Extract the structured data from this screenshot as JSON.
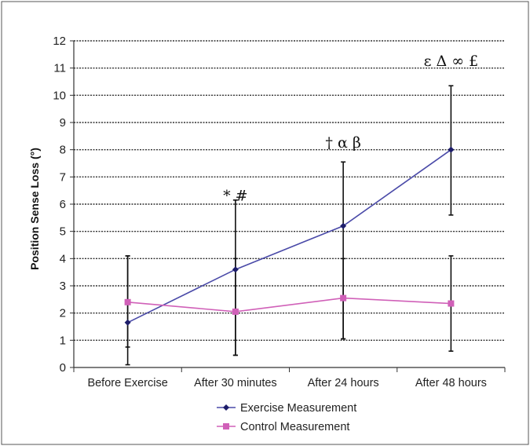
{
  "chart_data": {
    "type": "line",
    "title": "",
    "xlabel": "",
    "ylabel": "Position Sense Loss (°)",
    "ylim": [
      0,
      12
    ],
    "yticks": [
      "0",
      "1",
      "2",
      "3",
      "4",
      "5",
      "6",
      "7",
      "8",
      "9",
      "10",
      "11",
      "12"
    ],
    "grid": "horizontal dashed",
    "legend_position": "bottom",
    "categories": [
      "Before Exercise",
      "After 30 minutes",
      "After 24 hours",
      "After 48 hours"
    ],
    "series": [
      {
        "name": "Exercise Measurement",
        "color": "#4a4aa8",
        "marker": "diamond",
        "values": [
          1.65,
          3.6,
          5.2,
          8.0
        ],
        "error_low": [
          0.1,
          0.45,
          1.05,
          5.6
        ],
        "error_high": [
          4.1,
          6.15,
          7.55,
          10.35
        ]
      },
      {
        "name": "Control Measurement",
        "color": "#d060b8",
        "marker": "square",
        "values": [
          2.4,
          2.05,
          2.55,
          2.35
        ],
        "error_low": [
          0.75,
          0.45,
          1.05,
          0.6
        ],
        "error_high": [
          4.1,
          4.0,
          4.0,
          4.1
        ]
      }
    ],
    "annotations": [
      {
        "category_index": 1,
        "text": "* #",
        "y": 6.3
      },
      {
        "category_index": 2,
        "text": "† α β",
        "y": 8.25
      },
      {
        "category_index": 3,
        "text": "ε Δ ∞ £",
        "y": 11.25
      }
    ]
  }
}
